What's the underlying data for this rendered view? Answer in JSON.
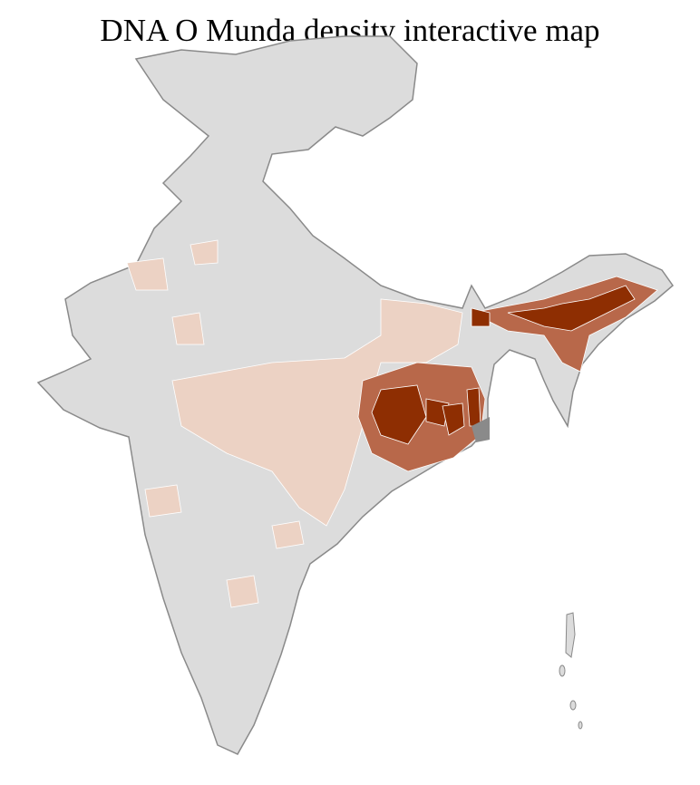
{
  "title": "DNA O Munda density interactive map",
  "colors": {
    "background": "#ffffff",
    "no_data": "#dcdcdc",
    "low": "#ecd2c4",
    "mid_low": "#d9a88f",
    "mid": "#b8684a",
    "high": "#8e2e02",
    "state_border": "#8a8a8a",
    "district_border": "#ffffff"
  }
}
